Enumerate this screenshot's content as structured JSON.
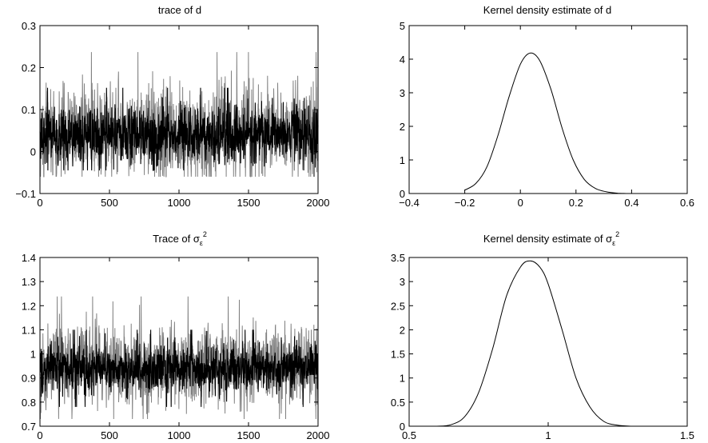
{
  "chart_data": [
    {
      "id": "trace-d",
      "type": "line",
      "title_text": "trace of d",
      "title_sub": "",
      "title_sup": "",
      "xlim": [
        0,
        2000
      ],
      "ylim": [
        -0.1,
        0.3
      ],
      "xticks": [
        0,
        500,
        1000,
        1500,
        2000
      ],
      "xtick_labels": [
        "0",
        "500",
        "1000",
        "1500",
        "2000"
      ],
      "yticks": [
        -0.1,
        0,
        0.1,
        0.2,
        0.3
      ],
      "ytick_labels": [
        "−0.1",
        "0",
        "0.1",
        "0.2",
        "0.3"
      ],
      "grid": false,
      "series": [
        {
          "color": "#808080",
          "envelope": {
            "center": 0.045,
            "spread": 0.06,
            "min": -0.06,
            "max": 0.27
          }
        },
        {
          "color": "#000000",
          "envelope": {
            "center": 0.04,
            "spread": 0.035,
            "min": -0.045,
            "max": 0.17
          }
        }
      ]
    },
    {
      "id": "kde-d",
      "type": "line",
      "title_text": "Kernel density estimate of d",
      "title_sub": "",
      "title_sup": "",
      "xlim": [
        -0.4,
        0.6
      ],
      "ylim": [
        0,
        5
      ],
      "xticks": [
        -0.4,
        -0.2,
        0,
        0.2,
        0.4,
        0.6
      ],
      "xtick_labels": [
        "−0.4",
        "−0.2",
        "0",
        "0.2",
        "0.4",
        "0.6"
      ],
      "yticks": [
        0,
        1,
        2,
        3,
        4,
        5
      ],
      "ytick_labels": [
        "0",
        "1",
        "2",
        "3",
        "4",
        "5"
      ],
      "grid": false,
      "series": [
        {
          "color": "#000000",
          "x": [
            -0.2,
            -0.16,
            -0.12,
            -0.08,
            -0.04,
            0.0,
            0.035,
            0.07,
            0.11,
            0.15,
            0.19,
            0.23,
            0.27,
            0.31,
            0.35,
            0.38
          ],
          "y": [
            0.1,
            0.3,
            0.8,
            1.75,
            2.9,
            3.85,
            4.18,
            3.95,
            3.1,
            1.95,
            1.0,
            0.42,
            0.15,
            0.05,
            0.01,
            0.0
          ]
        }
      ]
    },
    {
      "id": "trace-sigma",
      "type": "line",
      "title_text": "Trace of σ",
      "title_sub": "ε",
      "title_sup": "2",
      "xlim": [
        0,
        2000
      ],
      "ylim": [
        0.7,
        1.4
      ],
      "xticks": [
        0,
        500,
        1000,
        1500,
        2000
      ],
      "xtick_labels": [
        "0",
        "500",
        "1000",
        "1500",
        "2000"
      ],
      "yticks": [
        0.7,
        0.8,
        0.9,
        1.0,
        1.1,
        1.2,
        1.3,
        1.4
      ],
      "ytick_labels": [
        "0.7",
        "0.8",
        "0.9",
        "1",
        "1.1",
        "1.2",
        "1.3",
        "1.4"
      ],
      "grid": false,
      "series": [
        {
          "color": "#808080",
          "envelope": {
            "center": 0.95,
            "spread": 0.09,
            "min": 0.73,
            "max": 1.28
          }
        },
        {
          "color": "#000000",
          "envelope": {
            "center": 0.94,
            "spread": 0.05,
            "min": 0.76,
            "max": 1.24
          }
        }
      ]
    },
    {
      "id": "kde-sigma",
      "type": "line",
      "title_text": "Kernel density estimate of σ",
      "title_sub": "ε",
      "title_sup": "2",
      "xlim": [
        0.5,
        1.5
      ],
      "ylim": [
        0,
        3.5
      ],
      "xticks": [
        0.5,
        1.0,
        1.5
      ],
      "xtick_labels": [
        "0.5",
        "1",
        "1.5"
      ],
      "yticks": [
        0,
        0.5,
        1,
        1.5,
        2,
        2.5,
        3,
        3.5
      ],
      "ytick_labels": [
        "0",
        "0.5",
        "1",
        "1.5",
        "2",
        "2.5",
        "3",
        "3.5"
      ],
      "grid": false,
      "series": [
        {
          "color": "#000000",
          "x": [
            0.6,
            0.65,
            0.7,
            0.75,
            0.8,
            0.85,
            0.9,
            0.935,
            0.97,
            1.0,
            1.05,
            1.1,
            1.15,
            1.2,
            1.25,
            1.3
          ],
          "y": [
            0.0,
            0.03,
            0.2,
            0.7,
            1.6,
            2.7,
            3.3,
            3.43,
            3.3,
            2.95,
            2.0,
            1.0,
            0.4,
            0.1,
            0.02,
            0.0
          ]
        }
      ]
    }
  ]
}
